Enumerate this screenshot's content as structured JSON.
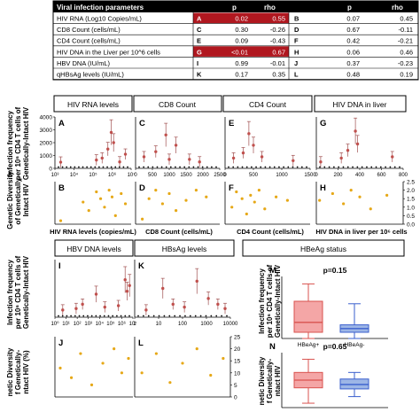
{
  "table": {
    "header": [
      "Viral infection parameters",
      "p",
      "rho",
      "",
      "p",
      "rho"
    ],
    "rows": [
      {
        "param": "HIV RNA (Log10 Copies/mL)",
        "l1": "A",
        "p1": "0.02",
        "r1": "0.55",
        "l2": "B",
        "p2": "0.07",
        "r2": "0.45",
        "hl": true
      },
      {
        "param": "CD8 Count (cells/mL)",
        "l1": "C",
        "p1": "0.30",
        "r1": "-0.26",
        "l2": "D",
        "p2": "0.67",
        "r2": "-0.11",
        "hl": false
      },
      {
        "param": "CD4 Count (cells/mL)",
        "l1": "E",
        "p1": "0.09",
        "r1": "-0.43",
        "l2": "F",
        "p2": "0.42",
        "r2": "-0.21",
        "hl": false
      },
      {
        "param": "HIV DNA in the Liver per 10^6 cells",
        "l1": "G",
        "p1": "<0.01",
        "r1": "0.67",
        "l2": "H",
        "p2": "0.06",
        "r2": "0.46",
        "hl": true
      },
      {
        "param": "HBV DNA (IU/mL)",
        "l1": "I",
        "p1": "0.99",
        "r1": "-0.01",
        "l2": "J",
        "p2": "0.37",
        "r2": "-0.23",
        "hl": false
      },
      {
        "param": "qHBsAg levels (IU/mL)",
        "l1": "K",
        "p1": "0.17",
        "r1": "0.35",
        "l2": "L",
        "p2": "0.48",
        "r2": "0.19",
        "hl": false
      }
    ],
    "highlight_color": "#b0171f"
  },
  "chart_data": [
    {
      "type": "scatter",
      "panel": "A",
      "header": "HIV RNA levels",
      "xlabel": "HIV RNA levels (copies/mL)",
      "xscale": "log",
      "xlim": [
        1000,
        10000000
      ],
      "xticks": [
        "10³",
        "10⁴",
        "10⁵",
        "10⁶",
        "10⁷"
      ],
      "ylim": [
        0,
        4000
      ],
      "yticks": [
        "0",
        "1000",
        "2000",
        "3000",
        "4000"
      ],
      "ylabel": "Infection frequency per 10⁶ CD4 T cells of Genetically-Intact HIV",
      "points": [
        {
          "x": 2000,
          "y": 480
        },
        {
          "x": 150000,
          "y": 650
        },
        {
          "x": 300000,
          "y": 800
        },
        {
          "x": 600000,
          "y": 1500
        },
        {
          "x": 900000,
          "y": 2800
        },
        {
          "x": 1200000,
          "y": 2000
        },
        {
          "x": 2500000,
          "y": 500
        },
        {
          "x": 5000000,
          "y": 1100
        }
      ]
    },
    {
      "type": "scatter",
      "panel": "C",
      "header": "CD8 Count",
      "xlabel": "CD8 Count (cells/mL)",
      "xlim": [
        0,
        2500
      ],
      "xticks": [
        "0",
        "500",
        "1000",
        "1500",
        "2000",
        "2500"
      ],
      "ylim": [
        0,
        4000
      ],
      "points": [
        {
          "x": 250,
          "y": 900
        },
        {
          "x": 600,
          "y": 1300
        },
        {
          "x": 900,
          "y": 2600
        },
        {
          "x": 1000,
          "y": 700
        },
        {
          "x": 1200,
          "y": 1800
        },
        {
          "x": 1600,
          "y": 700
        },
        {
          "x": 1900,
          "y": 500
        }
      ]
    },
    {
      "type": "scatter",
      "panel": "E",
      "header": "CD4 Count",
      "xlabel": "CD4 Count (cells/mL)",
      "xlim": [
        0,
        1500
      ],
      "xticks": [
        "0",
        "500",
        "1000",
        "1500"
      ],
      "ylim": [
        0,
        4000
      ],
      "points": [
        {
          "x": 150,
          "y": 800
        },
        {
          "x": 320,
          "y": 1200
        },
        {
          "x": 420,
          "y": 2700
        },
        {
          "x": 500,
          "y": 1800
        },
        {
          "x": 650,
          "y": 900
        },
        {
          "x": 1200,
          "y": 600
        }
      ]
    },
    {
      "type": "scatter",
      "panel": "G",
      "header": "HIV DNA in liver",
      "xlabel": "HIV DNA in liver per 10⁶ cells",
      "xlim": [
        0,
        800
      ],
      "xticks": [
        "0",
        "200",
        "400",
        "600",
        "800"
      ],
      "ylim": [
        0,
        4000
      ],
      "points": [
        {
          "x": 40,
          "y": 500
        },
        {
          "x": 230,
          "y": 800
        },
        {
          "x": 290,
          "y": 1400
        },
        {
          "x": 360,
          "y": 2900
        },
        {
          "x": 380,
          "y": 1900
        },
        {
          "x": 700,
          "y": 900
        }
      ]
    },
    {
      "type": "scatter",
      "panel": "B",
      "xlim": [
        1000,
        10000000
      ],
      "xscale": "log",
      "ylim": [
        0,
        2.5
      ],
      "ylabel": "Genetic Diversity of Genetically-Intact HIV",
      "points": [
        {
          "x": 2000,
          "y": 0.2
        },
        {
          "x": 30000,
          "y": 1.3
        },
        {
          "x": 60000,
          "y": 0.8
        },
        {
          "x": 150000,
          "y": 1.9
        },
        {
          "x": 250000,
          "y": 1.5
        },
        {
          "x": 400000,
          "y": 1.0
        },
        {
          "x": 700000,
          "y": 2.0
        },
        {
          "x": 1000000,
          "y": 1.6
        },
        {
          "x": 1500000,
          "y": 0.5
        },
        {
          "x": 3000000,
          "y": 1.8
        },
        {
          "x": 5000000,
          "y": 1.2
        }
      ]
    },
    {
      "type": "scatter",
      "panel": "D",
      "xlim": [
        0,
        2500
      ],
      "ylim": [
        0,
        2.5
      ],
      "points": [
        {
          "x": 200,
          "y": 0.3
        },
        {
          "x": 400,
          "y": 1.5
        },
        {
          "x": 600,
          "y": 2.0
        },
        {
          "x": 800,
          "y": 1.2
        },
        {
          "x": 1000,
          "y": 1.8
        },
        {
          "x": 1200,
          "y": 0.8
        },
        {
          "x": 1500,
          "y": 1.4
        },
        {
          "x": 1800,
          "y": 2.0
        },
        {
          "x": 2100,
          "y": 1.6
        }
      ]
    },
    {
      "type": "scatter",
      "panel": "F",
      "xlim": [
        0,
        1500
      ],
      "ylim": [
        0,
        2.5
      ],
      "points": [
        {
          "x": 120,
          "y": 1.0
        },
        {
          "x": 200,
          "y": 1.9
        },
        {
          "x": 300,
          "y": 1.5
        },
        {
          "x": 380,
          "y": 0.6
        },
        {
          "x": 450,
          "y": 1.7
        },
        {
          "x": 520,
          "y": 1.3
        },
        {
          "x": 600,
          "y": 2.0
        },
        {
          "x": 700,
          "y": 0.9
        },
        {
          "x": 900,
          "y": 1.6
        },
        {
          "x": 1100,
          "y": 1.4
        }
      ]
    },
    {
      "type": "scatter",
      "panel": "H",
      "xlim": [
        0,
        800
      ],
      "ylim": [
        0,
        2.5
      ],
      "y2ticks": [
        "0.0",
        "0.5",
        "1.0",
        "1.5",
        "2.0",
        "2.5"
      ],
      "points": [
        {
          "x": 30,
          "y": 1.4
        },
        {
          "x": 150,
          "y": 1.8
        },
        {
          "x": 250,
          "y": 1.2
        },
        {
          "x": 320,
          "y": 2.0
        },
        {
          "x": 400,
          "y": 1.6
        },
        {
          "x": 500,
          "y": 0.9
        },
        {
          "x": 650,
          "y": 1.7
        }
      ]
    },
    {
      "type": "scatter",
      "panel": "I",
      "header": "HBV DNA levels",
      "xscale": "log",
      "xlim": [
        1,
        10000000
      ],
      "xticks": [
        "10⁰",
        "10¹",
        "10²",
        "10³",
        "10⁴",
        "10⁵",
        "10⁶",
        "10⁷"
      ],
      "ylim": [
        0,
        4000
      ],
      "points": [
        {
          "x": 5,
          "y": 500
        },
        {
          "x": 80,
          "y": 600
        },
        {
          "x": 300,
          "y": 900
        },
        {
          "x": 5000,
          "y": 1600
        },
        {
          "x": 30000,
          "y": 700
        },
        {
          "x": 500000,
          "y": 800
        },
        {
          "x": 2000000,
          "y": 2600
        },
        {
          "x": 3000000,
          "y": 1800
        },
        {
          "x": 5000000,
          "y": 2200
        }
      ]
    },
    {
      "type": "scatter",
      "panel": "K",
      "header": "HBsAg levels",
      "xscale": "log",
      "xlim": [
        1,
        10000
      ],
      "xticks": [
        "1",
        "10",
        "100",
        "1000",
        "10000"
      ],
      "ylim": [
        0,
        4000
      ],
      "points": [
        {
          "x": 3,
          "y": 500
        },
        {
          "x": 15,
          "y": 2000
        },
        {
          "x": 40,
          "y": 900
        },
        {
          "x": 120,
          "y": 700
        },
        {
          "x": 400,
          "y": 2500
        },
        {
          "x": 1200,
          "y": 1300
        },
        {
          "x": 3000,
          "y": 900
        },
        {
          "x": 6000,
          "y": 600
        }
      ]
    },
    {
      "type": "scatter",
      "panel": "J",
      "xscale": "log",
      "xlim": [
        1,
        10000000
      ],
      "ylim": [
        0,
        25
      ],
      "ylabel": "Genetic Diversity of Genetically-Intact HIV (%)",
      "points": [
        {
          "x": 3,
          "y": 12
        },
        {
          "x": 30,
          "y": 8
        },
        {
          "x": 200,
          "y": 18
        },
        {
          "x": 2000,
          "y": 5
        },
        {
          "x": 20000,
          "y": 14
        },
        {
          "x": 200000,
          "y": 20
        },
        {
          "x": 1000000,
          "y": 10
        },
        {
          "x": 4000000,
          "y": 16
        }
      ]
    },
    {
      "type": "scatter",
      "panel": "L",
      "xscale": "log",
      "xlim": [
        1,
        10000
      ],
      "ylim": [
        0,
        25
      ],
      "y2ticks": [
        "0",
        "5",
        "10",
        "15",
        "20",
        "25"
      ],
      "points": [
        {
          "x": 2,
          "y": 10
        },
        {
          "x": 8,
          "y": 18
        },
        {
          "x": 30,
          "y": 6
        },
        {
          "x": 100,
          "y": 14
        },
        {
          "x": 400,
          "y": 20
        },
        {
          "x": 1500,
          "y": 9
        },
        {
          "x": 5000,
          "y": 16
        }
      ]
    },
    {
      "type": "box",
      "panel": "M",
      "header": "HBeAg status",
      "pvalue": "p=0.15",
      "categories": [
        "HBeAg+",
        "HBeAg-"
      ],
      "ylabel": "Infection frequency per 10⁶ CD4 T cells of Genetically-Intact HIV",
      "colors": [
        "#f4a6a6",
        "#9db6e6"
      ],
      "edge_colors": [
        "#d9534f",
        "#3a5fcd"
      ],
      "boxes": [
        {
          "min": 0,
          "q1": 250,
          "median": 650,
          "q3": 1500,
          "max": 2200
        },
        {
          "min": 0,
          "q1": 250,
          "median": 400,
          "q3": 550,
          "max": 1400
        }
      ],
      "ylim": [
        0,
        2500
      ]
    },
    {
      "type": "box",
      "panel": "N",
      "pvalue": "p=0.65",
      "categories": [
        "HBeAg+",
        "HBeAg-"
      ],
      "ylabel": "Genetic Diversity of Genetically-Intact HIV",
      "colors": [
        "#f4a6a6",
        "#9db6e6"
      ],
      "edge_colors": [
        "#d9534f",
        "#3a5fcd"
      ],
      "boxes": [
        {
          "min": 0.2,
          "q1": 0.9,
          "median": 1.25,
          "q3": 1.6,
          "max": 2.2
        },
        {
          "min": 0.5,
          "q1": 0.85,
          "median": 1.05,
          "q3": 1.3,
          "max": 1.6
        }
      ],
      "ylim": [
        0,
        2.5
      ]
    }
  ]
}
